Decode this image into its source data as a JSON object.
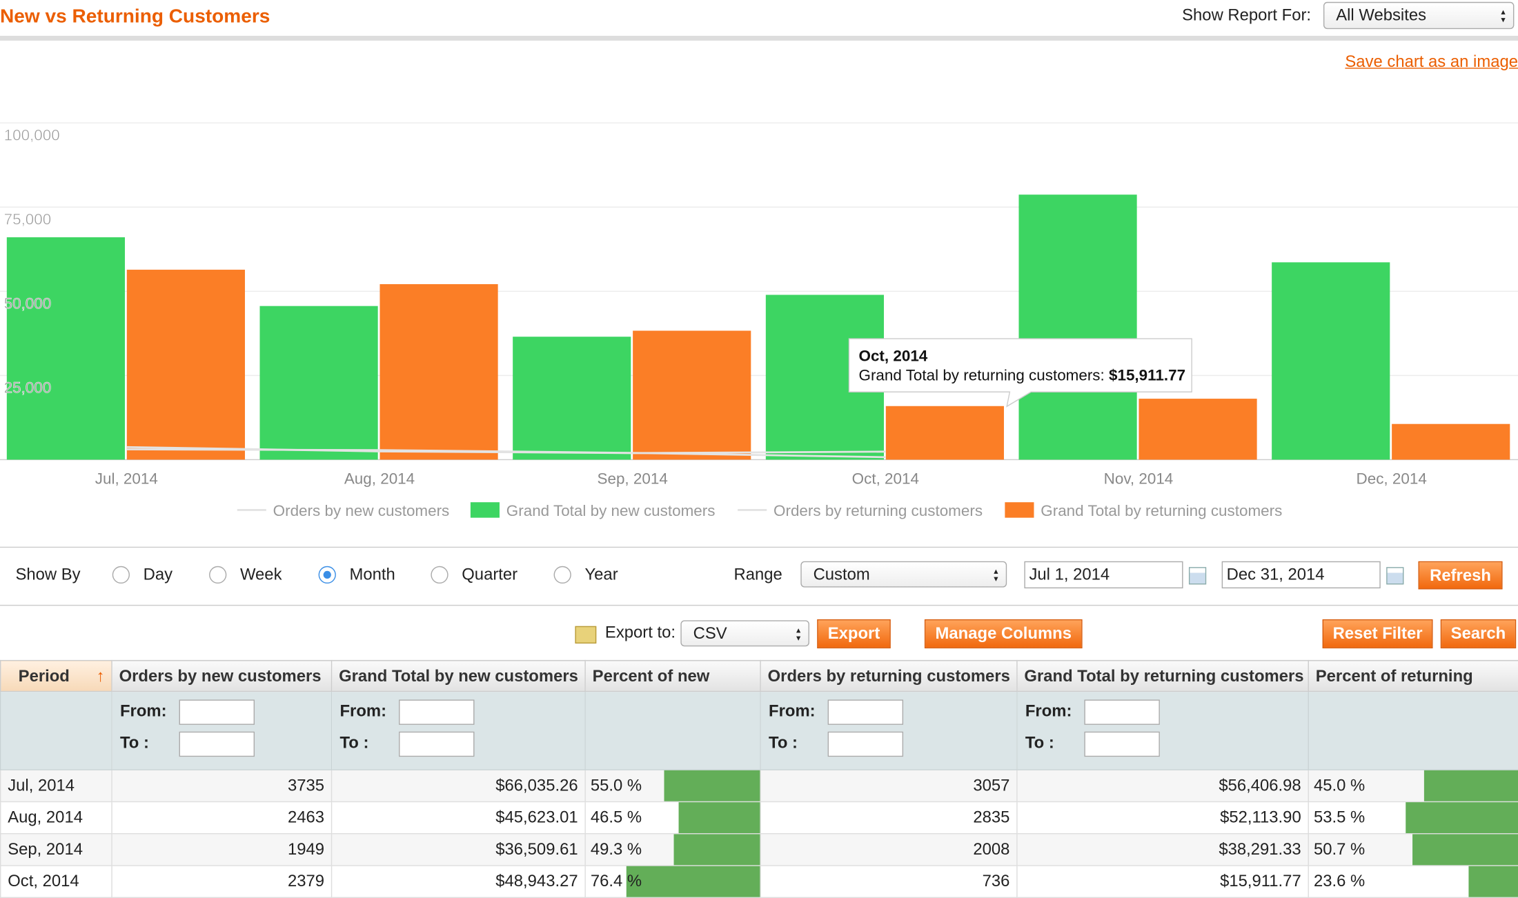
{
  "header": {
    "title": "New vs Returning Customers",
    "store_label": "Show Report For:",
    "store_value": "All Websites",
    "save_link": "Save chart as an image"
  },
  "chart_data": {
    "type": "bar",
    "categories": [
      "Jul, 2014",
      "Aug, 2014",
      "Sep, 2014",
      "Oct, 2014",
      "Nov, 2014",
      "Dec, 2014"
    ],
    "series": [
      {
        "name": "Orders by new customers",
        "type": "line",
        "color": "#e3e3e3",
        "values": [
          3735,
          2463,
          1949,
          2379,
          null,
          null
        ]
      },
      {
        "name": "Grand Total by new customers",
        "color": "#3dd562",
        "values": [
          66035.26,
          45623.01,
          36509.61,
          48943.27,
          78700,
          58600
        ]
      },
      {
        "name": "Orders by returning customers",
        "type": "line",
        "color": "#e3e3e3",
        "values": [
          3057,
          2835,
          2008,
          736,
          null,
          null
        ]
      },
      {
        "name": "Grand Total by returning customers",
        "color": "#fb7e26",
        "values": [
          56406.98,
          52113.9,
          38291.33,
          15911.77,
          18100,
          10600
        ]
      }
    ],
    "ylim": [
      0,
      100000
    ],
    "yticks": [
      {
        "value": 25000,
        "label": "25,000"
      },
      {
        "value": 50000,
        "label": "50,000"
      },
      {
        "value": 75000,
        "label": "75,000"
      },
      {
        "value": 100000,
        "label": "100,000"
      }
    ],
    "grid": true,
    "tooltip": {
      "title": "Oct, 2014",
      "label": "Grand Total by returning customers:",
      "value_label": "$15,911.77"
    }
  },
  "controls": {
    "show_by": "Show By",
    "periods": [
      "Day",
      "Week",
      "Month",
      "Quarter",
      "Year"
    ],
    "selected": 2,
    "range_label": "Range",
    "range_value": "Custom",
    "from_date": "Jul 1, 2014",
    "to_date": "Dec 31, 2014",
    "refresh": "Refresh"
  },
  "toolbar": {
    "export_label": "Export to:",
    "export_format": "CSV",
    "export": "Export",
    "manage_columns": "Manage Columns",
    "reset_filter": "Reset Filter",
    "search": "Search"
  },
  "table": {
    "columns": [
      "Period",
      "Orders by new customers",
      "Grand Total by new customers",
      "Percent of new",
      "Orders by returning customers",
      "Grand Total by returning customers",
      "Percent of returning"
    ],
    "filter_from": "From:",
    "filter_to": "To :",
    "rows": [
      [
        "Jul, 2014",
        3735,
        "$66,035.26",
        {
          "value": 55.0,
          "label": "55.0 %"
        },
        3057,
        "$56,406.98",
        {
          "value": 45.0,
          "label": "45.0 %"
        }
      ],
      [
        "Aug, 2014",
        2463,
        "$45,623.01",
        {
          "value": 46.5,
          "label": "46.5 %"
        },
        2835,
        "$52,113.90",
        {
          "value": 53.5,
          "label": "53.5 %"
        }
      ],
      [
        "Sep, 2014",
        1949,
        "$36,509.61",
        {
          "value": 49.3,
          "label": "49.3 %"
        },
        2008,
        "$38,291.33",
        {
          "value": 50.7,
          "label": "50.7 %"
        }
      ],
      [
        "Oct, 2014",
        2379,
        "$48,943.27",
        {
          "value": 76.4,
          "label": "76.4 %"
        },
        736,
        "$15,911.77",
        {
          "value": 23.6,
          "label": "23.6 %"
        }
      ]
    ]
  }
}
